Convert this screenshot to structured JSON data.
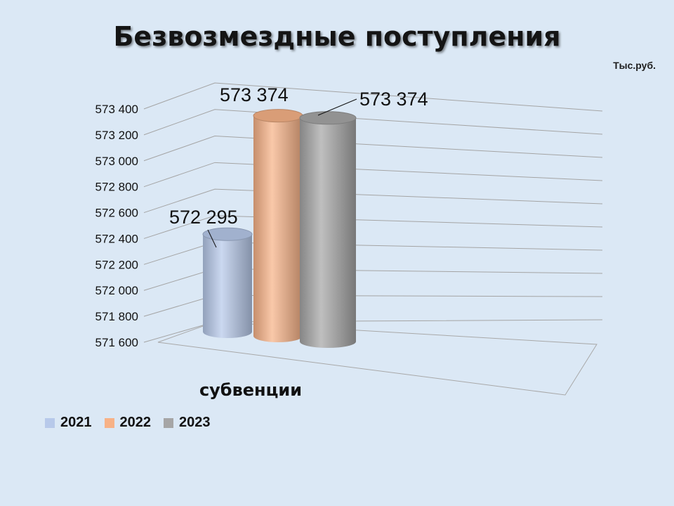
{
  "chart_data": {
    "type": "bar",
    "style": "3d-cylinder",
    "title": "Безвозмездные поступления",
    "unit": "Тыс.руб.",
    "categories": [
      "субвенции"
    ],
    "series": [
      {
        "name": "2021",
        "values": [
          572295
        ],
        "data_label": "572 295",
        "color": "#b7c9ea"
      },
      {
        "name": "2022",
        "values": [
          573374
        ],
        "data_label": "573 374",
        "color": "#f7b287"
      },
      {
        "name": "2023",
        "values": [
          573374
        ],
        "data_label": "573 374",
        "color": "#a6a6a6"
      }
    ],
    "ylim": [
      571600,
      573400
    ],
    "yticks": [
      571600,
      571800,
      572000,
      572200,
      572400,
      572600,
      572800,
      573000,
      573200,
      573400
    ],
    "ytick_labels": [
      "571 600",
      "571 800",
      "572 000",
      "572 200",
      "572 400",
      "572 600",
      "572 800",
      "573 000",
      "573 200",
      "573 400"
    ],
    "grid": true,
    "legend_position": "bottom-left"
  }
}
